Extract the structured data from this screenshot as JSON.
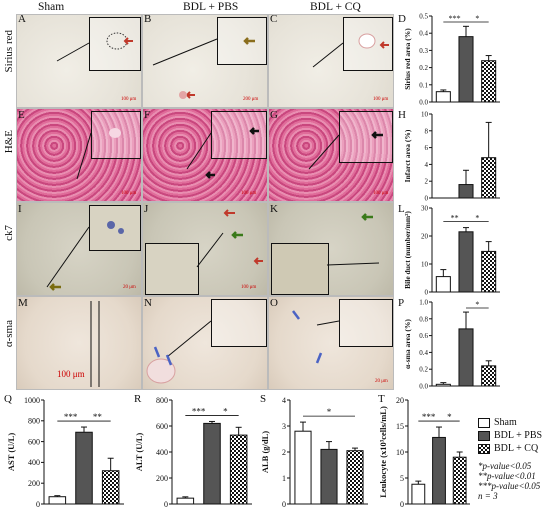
{
  "headers": {
    "sham": "Sham",
    "bdl_pbs": "BDL + PBS",
    "bdl_cq": "BDL + CQ"
  },
  "rows": [
    {
      "name": "Sirius red",
      "panels": [
        "A",
        "B",
        "C"
      ]
    },
    {
      "name": "H&E",
      "panels": [
        "E",
        "F",
        "G"
      ]
    },
    {
      "name": "ck7",
      "panels": [
        "I",
        "J",
        "K"
      ]
    },
    {
      "name": "α-sma",
      "panels": [
        "M",
        "N",
        "O"
      ]
    }
  ],
  "scalebars": {
    "A": "100 μm",
    "B": "200 μm",
    "C": "100 μm",
    "E": "100 μm",
    "F": "100 μm",
    "G": "100 μm",
    "I": "20 μm",
    "J": "100 μm",
    "K": "",
    "M": "100 μm",
    "N": "",
    "O": "20 μm"
  },
  "colors": {
    "bar_sham": "#ffffff",
    "bar_pbs": "#555555",
    "bar_cq": "checkered"
  },
  "chart_data": [
    {
      "panel": "D",
      "type": "bar",
      "ylabel": "Sirius red area (%)",
      "ylim": [
        0,
        0.5
      ],
      "yticks": [
        0.0,
        0.1,
        0.2,
        0.3,
        0.4,
        0.5
      ],
      "categories": [
        "Sham",
        "BDL + PBS",
        "BDL + CQ"
      ],
      "values": [
        0.06,
        0.38,
        0.24
      ],
      "errors": [
        0.01,
        0.06,
        0.03
      ],
      "sig": [
        {
          "pair": [
            0,
            1
          ],
          "label": "***"
        },
        {
          "pair": [
            1,
            2
          ],
          "label": "*"
        }
      ]
    },
    {
      "panel": "H",
      "type": "bar",
      "ylabel": "Infarct area (%)",
      "ylim": [
        0,
        10
      ],
      "yticks": [
        0,
        2,
        4,
        6,
        8,
        10
      ],
      "categories": [
        "Sham",
        "BDL + PBS",
        "BDL + CQ"
      ],
      "values": [
        0,
        1.6,
        4.8
      ],
      "errors": [
        0,
        1.7,
        4.2
      ],
      "sig": []
    },
    {
      "panel": "L",
      "type": "bar",
      "ylabel": "Bile duct (number/mm²)",
      "ylim": [
        0,
        30
      ],
      "yticks": [
        0,
        10,
        20,
        30
      ],
      "categories": [
        "Sham",
        "BDL + PBS",
        "BDL + CQ"
      ],
      "values": [
        5.5,
        21.5,
        14.5
      ],
      "errors": [
        2.5,
        1.5,
        3.5
      ],
      "sig": [
        {
          "pair": [
            0,
            1
          ],
          "label": "**"
        },
        {
          "pair": [
            1,
            2
          ],
          "label": "*"
        }
      ]
    },
    {
      "panel": "P",
      "type": "bar",
      "ylabel": "α-sma area (%)",
      "ylim": [
        0,
        1.0
      ],
      "yticks": [
        0.0,
        0.2,
        0.4,
        0.6,
        0.8,
        1.0
      ],
      "categories": [
        "Sham",
        "BDL + PBS",
        "BDL + CQ"
      ],
      "values": [
        0.02,
        0.68,
        0.24
      ],
      "errors": [
        0.02,
        0.2,
        0.06
      ],
      "sig": [
        {
          "pair": [
            1,
            2
          ],
          "label": "*"
        }
      ]
    },
    {
      "panel": "Q",
      "type": "bar",
      "ylabel": "AST (U/L)",
      "ylim": [
        0,
        1000
      ],
      "yticks": [
        0,
        200,
        400,
        600,
        800,
        1000
      ],
      "categories": [
        "Sham",
        "BDL + PBS",
        "BDL + CQ"
      ],
      "values": [
        70,
        690,
        320
      ],
      "errors": [
        10,
        50,
        120
      ],
      "sig": [
        {
          "pair": [
            0,
            1
          ],
          "label": "***"
        },
        {
          "pair": [
            1,
            2
          ],
          "label": "**"
        }
      ]
    },
    {
      "panel": "R",
      "type": "bar",
      "ylabel": "ALT (U/L)",
      "ylim": [
        0,
        800
      ],
      "yticks": [
        0,
        200,
        400,
        600,
        800
      ],
      "categories": [
        "Sham",
        "BDL + PBS",
        "BDL + CQ"
      ],
      "values": [
        45,
        620,
        530
      ],
      "errors": [
        10,
        15,
        60
      ],
      "sig": [
        {
          "pair": [
            0,
            1
          ],
          "label": "***"
        },
        {
          "pair": [
            1,
            2
          ],
          "label": "*"
        }
      ]
    },
    {
      "panel": "S",
      "type": "bar",
      "ylabel": "ALB (g/dL)",
      "ylim": [
        0,
        4
      ],
      "yticks": [
        0,
        1,
        2,
        3,
        4
      ],
      "categories": [
        "Sham",
        "BDL + PBS",
        "BDL + CQ"
      ],
      "values": [
        2.8,
        2.1,
        2.05
      ],
      "errors": [
        0.35,
        0.3,
        0.1
      ],
      "sig": [
        {
          "pair": [
            0,
            2
          ],
          "label": "*"
        }
      ]
    },
    {
      "panel": "T",
      "type": "bar",
      "ylabel": "Leukocyte (x10³cells/mL)",
      "ylim": [
        0,
        20
      ],
      "yticks": [
        0,
        5,
        10,
        15,
        20
      ],
      "categories": [
        "Sham",
        "BDL + PBS",
        "BDL + CQ"
      ],
      "values": [
        3.8,
        12.8,
        9.0
      ],
      "errors": [
        0.6,
        2.0,
        1.0
      ],
      "sig": [
        {
          "pair": [
            0,
            1
          ],
          "label": "***"
        },
        {
          "pair": [
            1,
            2
          ],
          "label": "*"
        }
      ]
    }
  ],
  "legend": {
    "items": [
      "Sham",
      "BDL + PBS",
      "BDL + CQ"
    ],
    "notes": [
      "*p-value<0.05",
      "**p-value<0.01",
      "***p-value<0.05",
      "n = 3"
    ]
  }
}
